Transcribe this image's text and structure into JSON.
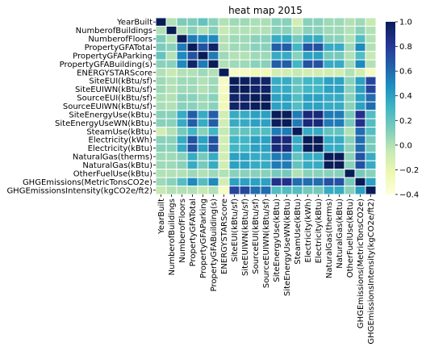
{
  "chart_data": {
    "type": "heatmap",
    "title": "heat map 2015",
    "labels": [
      "YearBuilt",
      "NumberofBuildings",
      "NumberofFloors",
      "PropertyGFATotal",
      "PropertyGFAParking",
      "PropertyGFABuilding(s)",
      "ENERGYSTARScore",
      "SiteEUI(kBtu/sf)",
      "SiteEUIWN(kBtu/sf)",
      "SourceEUI(kBtu/sf)",
      "SourceEUIWN(kBtu/sf)",
      "SiteEnergyUse(kBtu)",
      "SiteEnergyUseWN(kBtu)",
      "SteamUse(kBtu)",
      "Electricity(kWh)",
      "Electricity(kBtu)",
      "NaturalGas(therms)",
      "NaturalGas(kBtu)",
      "OtherFuelUse(kBtu)",
      "GHGEmissions(MetricTonsCO2e)",
      "GHGEmissionsIntensity(kgCO2e/ft2)"
    ],
    "matrix": [
      [
        1.0,
        0.0,
        0.13,
        0.13,
        0.2,
        0.1,
        0.0,
        0.05,
        0.05,
        0.02,
        0.02,
        0.1,
        0.1,
        -0.1,
        0.1,
        0.1,
        0.05,
        0.05,
        0.0,
        0.05,
        -0.05
      ],
      [
        0.0,
        1.0,
        0.0,
        0.1,
        0.0,
        0.1,
        -0.05,
        0.0,
        0.0,
        0.0,
        0.0,
        0.1,
        0.1,
        0.0,
        0.1,
        0.1,
        0.05,
        0.05,
        0.0,
        0.1,
        0.0
      ],
      [
        0.13,
        0.0,
        1.0,
        0.55,
        0.5,
        0.5,
        0.0,
        0.05,
        0.05,
        0.1,
        0.1,
        0.35,
        0.35,
        0.15,
        0.35,
        0.35,
        0.1,
        0.1,
        0.0,
        0.25,
        0.0
      ],
      [
        0.13,
        0.1,
        0.55,
        1.0,
        0.7,
        0.95,
        0.0,
        0.05,
        0.05,
        0.1,
        0.1,
        0.65,
        0.65,
        0.3,
        0.7,
        0.7,
        0.35,
        0.35,
        0.05,
        0.5,
        0.0
      ],
      [
        0.2,
        0.0,
        0.5,
        0.7,
        1.0,
        0.55,
        0.05,
        0.0,
        0.0,
        0.05,
        0.05,
        0.35,
        0.35,
        0.1,
        0.4,
        0.4,
        0.15,
        0.15,
        0.0,
        0.25,
        -0.05
      ],
      [
        0.1,
        0.1,
        0.5,
        0.95,
        0.55,
        1.0,
        0.0,
        0.05,
        0.05,
        0.1,
        0.1,
        0.65,
        0.65,
        0.3,
        0.7,
        0.7,
        0.35,
        0.35,
        0.05,
        0.5,
        0.0
      ],
      [
        0.0,
        -0.05,
        0.0,
        0.0,
        0.05,
        0.0,
        1.0,
        -0.3,
        -0.3,
        -0.25,
        -0.25,
        -0.1,
        -0.1,
        -0.05,
        -0.1,
        -0.1,
        -0.1,
        -0.1,
        0.0,
        -0.1,
        -0.3
      ],
      [
        0.05,
        0.0,
        0.05,
        0.05,
        0.0,
        0.05,
        -0.3,
        1.0,
        0.98,
        0.95,
        0.95,
        0.35,
        0.35,
        0.2,
        0.3,
        0.3,
        0.4,
        0.4,
        0.1,
        0.4,
        0.75
      ],
      [
        0.05,
        0.0,
        0.05,
        0.05,
        0.0,
        0.05,
        -0.3,
        0.98,
        1.0,
        0.95,
        0.96,
        0.35,
        0.35,
        0.2,
        0.3,
        0.3,
        0.4,
        0.4,
        0.1,
        0.4,
        0.75
      ],
      [
        0.02,
        0.0,
        0.1,
        0.1,
        0.05,
        0.1,
        -0.25,
        0.95,
        0.95,
        1.0,
        0.99,
        0.4,
        0.4,
        0.25,
        0.4,
        0.4,
        0.35,
        0.35,
        0.1,
        0.4,
        0.6
      ],
      [
        0.02,
        0.0,
        0.1,
        0.1,
        0.05,
        0.1,
        -0.25,
        0.95,
        0.96,
        0.99,
        1.0,
        0.4,
        0.4,
        0.25,
        0.4,
        0.4,
        0.35,
        0.35,
        0.1,
        0.4,
        0.6
      ],
      [
        0.1,
        0.1,
        0.35,
        0.65,
        0.35,
        0.65,
        -0.1,
        0.35,
        0.35,
        0.4,
        0.4,
        1.0,
        0.99,
        0.55,
        0.9,
        0.9,
        0.55,
        0.55,
        0.15,
        0.85,
        0.25
      ],
      [
        0.1,
        0.1,
        0.35,
        0.65,
        0.35,
        0.65,
        -0.1,
        0.35,
        0.35,
        0.4,
        0.4,
        0.99,
        1.0,
        0.55,
        0.9,
        0.9,
        0.55,
        0.55,
        0.15,
        0.85,
        0.25
      ],
      [
        -0.1,
        0.0,
        0.15,
        0.3,
        0.1,
        0.3,
        -0.05,
        0.2,
        0.2,
        0.25,
        0.25,
        0.55,
        0.55,
        1.0,
        0.35,
        0.35,
        0.2,
        0.2,
        0.0,
        0.6,
        0.25
      ],
      [
        0.1,
        0.1,
        0.35,
        0.7,
        0.4,
        0.7,
        -0.1,
        0.3,
        0.3,
        0.4,
        0.4,
        0.9,
        0.9,
        0.35,
        1.0,
        1.0,
        0.35,
        0.35,
        0.1,
        0.6,
        0.15
      ],
      [
        0.1,
        0.1,
        0.35,
        0.7,
        0.4,
        0.7,
        -0.1,
        0.3,
        0.3,
        0.4,
        0.4,
        0.9,
        0.9,
        0.35,
        1.0,
        1.0,
        0.35,
        0.35,
        0.1,
        0.6,
        0.15
      ],
      [
        0.05,
        0.05,
        0.1,
        0.35,
        0.15,
        0.35,
        -0.1,
        0.4,
        0.4,
        0.35,
        0.35,
        0.55,
        0.55,
        0.2,
        0.35,
        0.35,
        1.0,
        1.0,
        0.1,
        0.7,
        0.35
      ],
      [
        0.05,
        0.05,
        0.1,
        0.35,
        0.15,
        0.35,
        -0.1,
        0.4,
        0.4,
        0.35,
        0.35,
        0.55,
        0.55,
        0.2,
        0.35,
        0.35,
        1.0,
        1.0,
        0.1,
        0.7,
        0.35
      ],
      [
        0.0,
        0.0,
        0.0,
        0.05,
        0.0,
        0.05,
        0.0,
        0.1,
        0.1,
        0.1,
        0.1,
        0.15,
        0.15,
        0.0,
        0.1,
        0.1,
        0.1,
        0.1,
        1.0,
        0.15,
        0.1
      ],
      [
        0.05,
        0.1,
        0.25,
        0.5,
        0.25,
        0.5,
        -0.1,
        0.4,
        0.4,
        0.4,
        0.4,
        0.85,
        0.85,
        0.6,
        0.6,
        0.6,
        0.7,
        0.7,
        0.15,
        1.0,
        0.4
      ],
      [
        -0.05,
        0.0,
        0.0,
        0.0,
        -0.05,
        0.0,
        -0.3,
        0.75,
        0.75,
        0.6,
        0.6,
        0.25,
        0.25,
        0.25,
        0.15,
        0.15,
        0.35,
        0.35,
        0.1,
        0.4,
        1.0
      ]
    ],
    "vmin": -0.4,
    "vmax": 1.0,
    "colormap": "YlGnBu",
    "cell_border_color": "#ffffff",
    "colorbar_ticks": [
      -0.4,
      -0.2,
      0.0,
      0.2,
      0.4,
      0.6,
      0.8,
      1.0
    ],
    "colorbar_tick_labels": [
      "−0.4",
      "−0.2",
      "0.0",
      "0.2",
      "0.4",
      "0.6",
      "0.8",
      "1.0"
    ]
  }
}
